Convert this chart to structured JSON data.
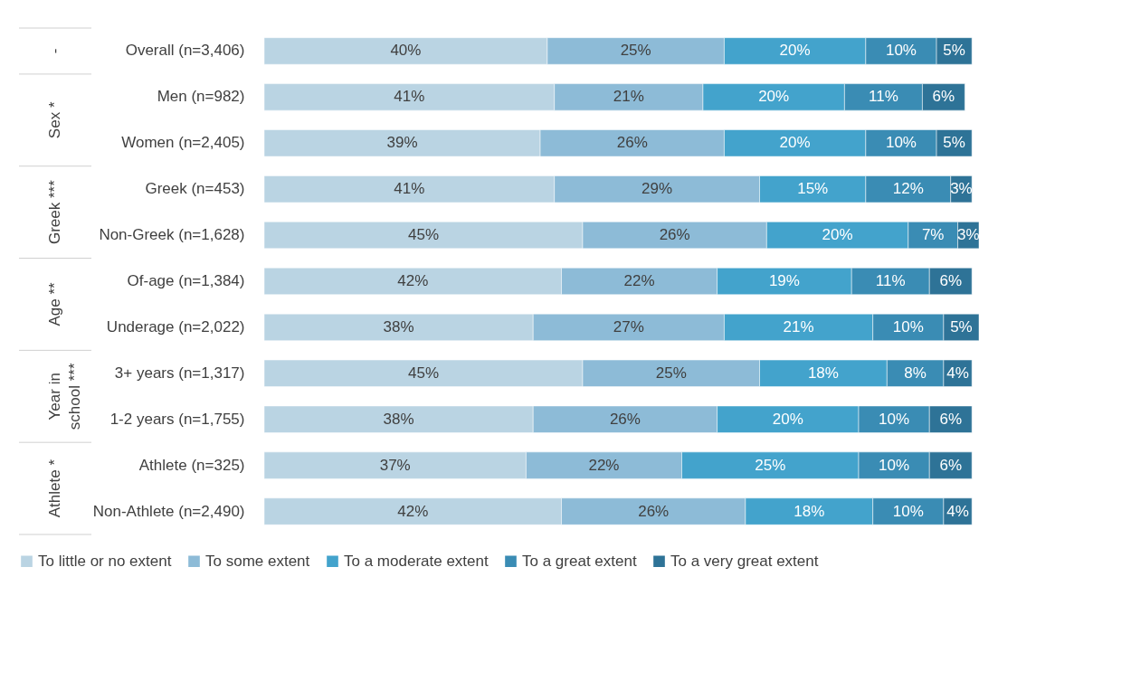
{
  "chart_data": {
    "type": "bar",
    "orientation": "horizontal",
    "stacked": true,
    "legend": "bottom",
    "grid": false,
    "tick_labels": "y",
    "categories": [
      "Overall  (n=3,406)",
      "Men (n=982)",
      "Women (n=2,405)",
      "Greek (n=453)",
      "Non-Greek (n=1,628)",
      "Of-age (n=1,384)",
      "Underage (n=2,022)",
      "3+ years (n=1,317)",
      "1-2 years (n=1,755)",
      "Athlete (n=325)",
      "Non-Athlete (n=2,490)"
    ],
    "series": [
      {
        "name": "To little or no extent",
        "color": "#bad4e3",
        "values": [
          40,
          41,
          39,
          41,
          45,
          42,
          38,
          45,
          38,
          37,
          42
        ],
        "value_labels": [
          "40%",
          "41%",
          "39%",
          "41%",
          "45%",
          "42%",
          "38%",
          "45%",
          "38%",
          "37%",
          "42%"
        ]
      },
      {
        "name": "To some extent",
        "color": "#8dbbd7",
        "values": [
          25,
          21,
          26,
          29,
          26,
          22,
          27,
          25,
          26,
          22,
          26
        ],
        "value_labels": [
          "25%",
          "21%",
          "26%",
          "29%",
          "26%",
          "22%",
          "27%",
          "25%",
          "26%",
          "22%",
          "26%"
        ]
      },
      {
        "name": "To a moderate extent",
        "color": "#43a3cc",
        "values": [
          20,
          20,
          20,
          15,
          20,
          19,
          21,
          18,
          20,
          25,
          18
        ],
        "value_labels": [
          "20%",
          "20%",
          "20%",
          "15%",
          "20%",
          "19%",
          "21%",
          "18%",
          "20%",
          "25%",
          "18%"
        ]
      },
      {
        "name": "To a great extent",
        "color": "#3a8cb4",
        "values": [
          10,
          11,
          10,
          12,
          7,
          11,
          10,
          8,
          10,
          10,
          10
        ],
        "value_labels": [
          "10%",
          "11%",
          "10%",
          "12%",
          "7%",
          "11%",
          "10%",
          "8%",
          "10%",
          "10%",
          "10%"
        ]
      },
      {
        "name": "To a very great extent",
        "color": "#2e7397",
        "values": [
          5,
          6,
          5,
          3,
          3,
          6,
          5,
          4,
          6,
          6,
          4
        ],
        "value_labels": [
          "5%",
          "6%",
          "5%",
          "3%",
          "3%",
          "6%",
          "5%",
          "4%",
          "6%",
          "6%",
          "4%"
        ]
      }
    ],
    "annotations": [
      "-",
      "Sex *",
      "Greek ***",
      "Age **",
      "Year in school ***",
      "Athlete *"
    ]
  }
}
